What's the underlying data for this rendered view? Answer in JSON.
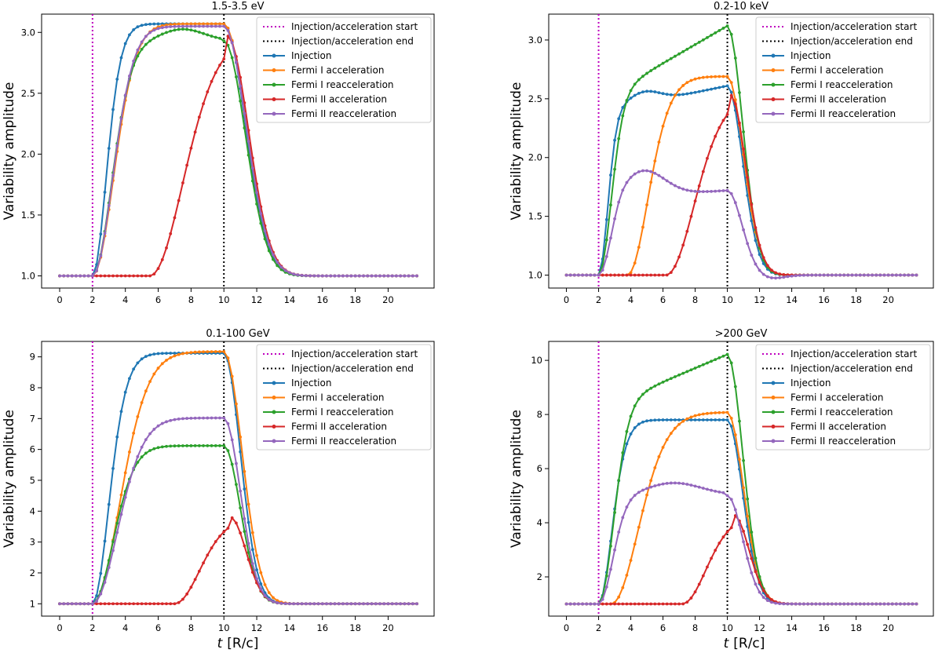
{
  "figure": {
    "xlabel_t": "t",
    "xlabel_unit": "[R/c]",
    "ylabel": "Variability amplitude"
  },
  "colors": {
    "injection": "#1f77b4",
    "fermi1_acc": "#ff7f0e",
    "fermi1_reacc": "#2ca02c",
    "fermi2_acc": "#d62728",
    "fermi2_reacc": "#9467bd",
    "start_line": "#bf00bf",
    "end_line": "#000000"
  },
  "legend": [
    {
      "key": "start",
      "label": "Injection/acceleration start"
    },
    {
      "key": "end",
      "label": "Injection/acceleration end"
    },
    {
      "key": "inj",
      "label": "Injection"
    },
    {
      "key": "f1a",
      "label": "Fermi I acceleration"
    },
    {
      "key": "f1r",
      "label": "Fermi I reacceleration"
    },
    {
      "key": "f2a",
      "label": "Fermi II acceleration"
    },
    {
      "key": "f2r",
      "label": "Fermi II reacceleration"
    }
  ],
  "chart_data": [
    {
      "type": "line",
      "title": "1.5-3.5 eV",
      "xlabel": "t [R/c]",
      "ylabel": "Variability amplitude",
      "xlim": [
        -1.1,
        22.8
      ],
      "ylim": [
        0.9,
        3.15
      ],
      "xticks": [
        0,
        2,
        4,
        6,
        8,
        10,
        12,
        14,
        16,
        18,
        20
      ],
      "yticks": [
        1.0,
        1.5,
        2.0,
        2.5,
        3.0
      ],
      "ytick_labels": [
        "1.0",
        "1.5",
        "2.0",
        "2.5",
        "3.0"
      ],
      "vlines": [
        2,
        10
      ],
      "series": [
        {
          "name": "Injection",
          "key": "inj",
          "peak": 3.07,
          "rise": [
            2.0,
            0.72,
            1.0,
            1.0
          ],
          "t_drop": 10.0,
          "decay_sig": 1.3
        },
        {
          "name": "Fermi I acceleration",
          "key": "f1a",
          "peak": 3.07,
          "rise": [
            2.0,
            1.15,
            1.45,
            1.0
          ],
          "t_drop": 10.0,
          "decay_sig": 1.35
        },
        {
          "name": "Fermi I reacceleration",
          "key": "f1r",
          "peak": 2.93,
          "rise": [
            2.0,
            1.05,
            1.3,
            1.0
          ],
          "t_drop": 10.0,
          "decay_sig": 1.3,
          "bump": [
            7.5,
            1.3,
            0.05
          ]
        },
        {
          "name": "Fermi II acceleration",
          "key": "f2a",
          "peak": 2.97,
          "rise": [
            5.5,
            1.8,
            2.3,
            1.0
          ],
          "t_drop": 10.2,
          "decay_sig": 1.3
        },
        {
          "name": "Fermi II reacceleration",
          "key": "f2r",
          "peak": 3.05,
          "rise": [
            2.0,
            1.1,
            1.4,
            1.0
          ],
          "t_drop": 10.0,
          "decay_sig": 1.35
        }
      ]
    },
    {
      "type": "line",
      "title": "0.2-10 keV",
      "xlabel": "t [R/c]",
      "ylabel": "Variability amplitude",
      "xlim": [
        -1.1,
        22.8
      ],
      "ylim": [
        0.89,
        3.22
      ],
      "xticks": [
        0,
        2,
        4,
        6,
        8,
        10,
        12,
        14,
        16,
        18,
        20
      ],
      "yticks": [
        1.0,
        1.5,
        2.0,
        2.5,
        3.0
      ],
      "ytick_labels": [
        "1.0",
        "1.5",
        "2.0",
        "2.5",
        "3.0"
      ],
      "vlines": [
        2,
        10
      ],
      "series": [
        {
          "name": "Injection",
          "key": "inj",
          "peak": 2.61,
          "rise": [
            2.0,
            0.55,
            0.85,
            0.86
          ],
          "t_drop": 10.0,
          "decay_sig": 0.95,
          "bump": [
            4.8,
            1.0,
            0.06
          ]
        },
        {
          "name": "Fermi I acceleration",
          "key": "f1a",
          "peak": 2.69,
          "rise": [
            3.8,
            1.1,
            1.55,
            1.0
          ],
          "t_drop": 10.0,
          "decay_sig": 1.0
        },
        {
          "name": "Fermi I reacceleration",
          "key": "f1r",
          "peak": 3.12,
          "rise": [
            2.0,
            0.75,
            1.1,
            0.7
          ],
          "t_drop": 10.0,
          "decay_sig": 0.95
        },
        {
          "name": "Fermi II acceleration",
          "key": "f2a",
          "peak": 2.53,
          "rise": [
            6.2,
            1.55,
            2.0,
            1.0
          ],
          "t_drop": 10.2,
          "decay_sig": 0.95
        },
        {
          "name": "Fermi II reacceleration",
          "key": "f2r",
          "peak": 1.72,
          "rise": [
            2.0,
            0.7,
            1.0,
            0.9
          ],
          "t_drop": 10.0,
          "decay_sig": 0.9,
          "bump": [
            4.8,
            1.3,
            0.3
          ],
          "undershoot": [
            12.7,
            0.8,
            -0.03
          ]
        }
      ]
    },
    {
      "type": "line",
      "title": "0.1-100 GeV",
      "xlabel": "t [R/c]",
      "ylabel": "Variability amplitude",
      "xlim": [
        -1.1,
        22.8
      ],
      "ylim": [
        0.6,
        9.5
      ],
      "xticks": [
        0,
        2,
        4,
        6,
        8,
        10,
        12,
        14,
        16,
        18,
        20
      ],
      "yticks": [
        1,
        2,
        3,
        4,
        5,
        6,
        7,
        8,
        9
      ],
      "ytick_labels": [
        "1",
        "2",
        "3",
        "4",
        "5",
        "6",
        "7",
        "8",
        "9"
      ],
      "vlines": [
        2,
        10
      ],
      "series": [
        {
          "name": "Injection",
          "key": "inj",
          "peak": 9.12,
          "rise": [
            2.0,
            0.85,
            1.2,
            1.0
          ],
          "t_drop": 10.0,
          "decay_sig": 1.0
        },
        {
          "name": "Fermi I acceleration",
          "key": "f1a",
          "peak": 9.17,
          "rise": [
            2.0,
            1.45,
            1.9,
            1.0
          ],
          "t_drop": 10.0,
          "decay_sig": 1.1
        },
        {
          "name": "Fermi I reacceleration",
          "key": "f1r",
          "peak": 6.12,
          "rise": [
            2.0,
            1.1,
            1.45,
            1.0
          ],
          "t_drop": 10.0,
          "decay_sig": 1.0
        },
        {
          "name": "Fermi II acceleration",
          "key": "f2a",
          "peak": 3.8,
          "rise": [
            7.0,
            1.35,
            1.8,
            1.0
          ],
          "t_drop": 10.4,
          "decay_sig": 0.95
        },
        {
          "name": "Fermi II reacceleration",
          "key": "f2r",
          "peak": 7.02,
          "rise": [
            2.0,
            1.35,
            1.75,
            1.0
          ],
          "t_drop": 10.0,
          "decay_sig": 1.0
        }
      ]
    },
    {
      "type": "line",
      "title": ">200 GeV",
      "xlabel": "t [R/c]",
      "ylabel": "Variability amplitude",
      "xlim": [
        -1.1,
        22.8
      ],
      "ylim": [
        0.55,
        10.7
      ],
      "xticks": [
        0,
        2,
        4,
        6,
        8,
        10,
        12,
        14,
        16,
        18,
        20
      ],
      "yticks": [
        2,
        4,
        6,
        8,
        10
      ],
      "ytick_labels": [
        "2",
        "4",
        "6",
        "8",
        "10"
      ],
      "vlines": [
        2,
        10
      ],
      "series": [
        {
          "name": "Injection",
          "key": "inj",
          "peak": 7.8,
          "rise": [
            2.0,
            0.7,
            1.0,
            1.0
          ],
          "t_drop": 10.0,
          "decay_sig": 0.95
        },
        {
          "name": "Fermi I acceleration",
          "key": "f1a",
          "peak": 8.08,
          "rise": [
            2.8,
            1.45,
            2.0,
            1.0
          ],
          "t_drop": 10.0,
          "decay_sig": 1.0
        },
        {
          "name": "Fermi I reacceleration",
          "key": "f1r",
          "peak": 10.22,
          "rise": [
            2.0,
            0.9,
            1.3,
            0.78
          ],
          "t_drop": 10.0,
          "decay_sig": 0.95
        },
        {
          "name": "Fermi II acceleration",
          "key": "f2a",
          "peak": 4.28,
          "rise": [
            7.2,
            1.3,
            1.75,
            1.0
          ],
          "t_drop": 10.4,
          "decay_sig": 0.95
        },
        {
          "name": "Fermi II reacceleration",
          "key": "f2r",
          "peak": 5.0,
          "rise": [
            2.0,
            0.85,
            1.2,
            0.97
          ],
          "t_drop": 10.0,
          "decay_sig": 0.95,
          "bump": [
            6.6,
            1.8,
            0.13
          ]
        }
      ]
    }
  ]
}
